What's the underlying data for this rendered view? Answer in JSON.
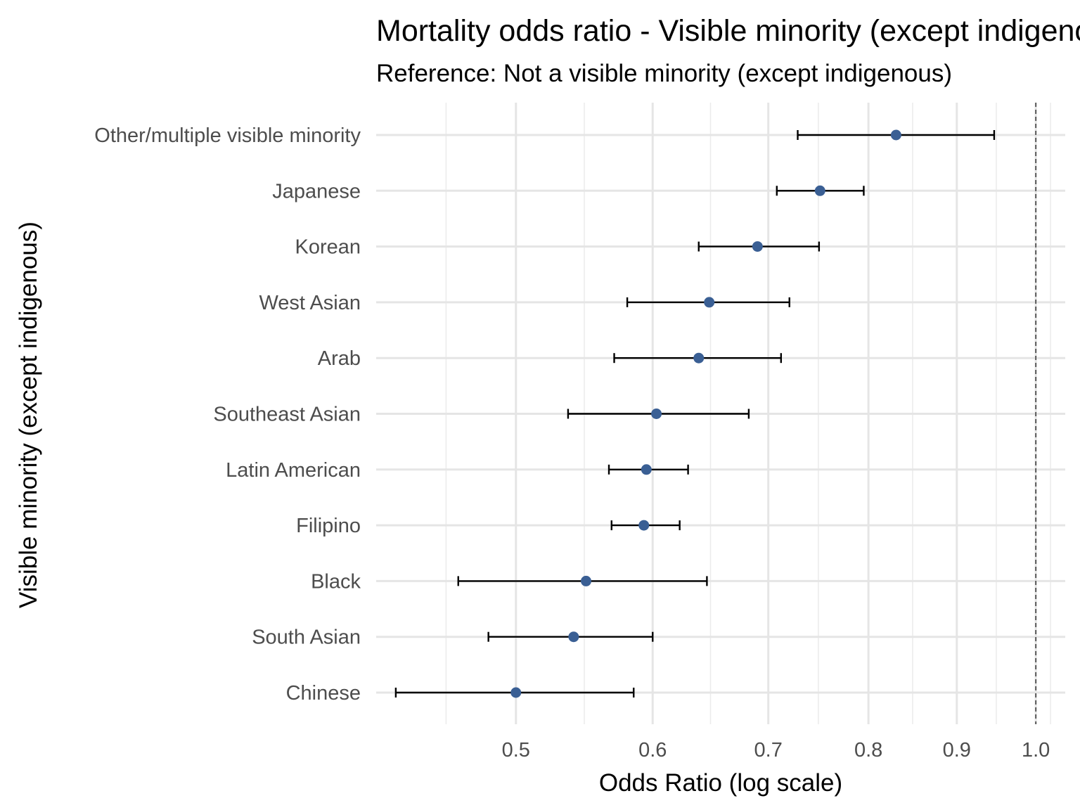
{
  "chart_data": {
    "type": "scatter",
    "title": "Mortality odds ratio - Visible minority (except indigenous)",
    "subtitle": "Reference: Not a visible minority (except indigenous)",
    "xlabel": "Odds Ratio (log scale)",
    "ylabel": "Visible minority (except indigenous)",
    "x_scale": "log",
    "xlim": [
      0.415,
      1.04
    ],
    "x_ticks": [
      0.5,
      0.6,
      0.7,
      0.8,
      0.9,
      1.0
    ],
    "x_tick_labels": [
      "0.5",
      "0.6",
      "0.7",
      "0.8",
      "0.9",
      "1.0"
    ],
    "reference_line": 1.0,
    "grid": true,
    "point_color": "#3a5f94",
    "errorbar_color": "#000000",
    "categories": [
      "Other/multiple visible minority",
      "Japanese",
      "Korean",
      "West Asian",
      "Arab",
      "Southeast Asian",
      "Latin American",
      "Filipino",
      "Black",
      "South Asian",
      "Chinese"
    ],
    "estimates": [
      0.83,
      0.75,
      0.69,
      0.647,
      0.638,
      0.603,
      0.595,
      0.593,
      0.549,
      0.54,
      0.5
    ],
    "ci_lower": [
      0.728,
      0.708,
      0.638,
      0.58,
      0.57,
      0.536,
      0.566,
      0.568,
      0.463,
      0.482,
      0.426
    ],
    "ci_upper": [
      0.946,
      0.795,
      0.749,
      0.72,
      0.712,
      0.682,
      0.629,
      0.622,
      0.645,
      0.6,
      0.585
    ]
  }
}
